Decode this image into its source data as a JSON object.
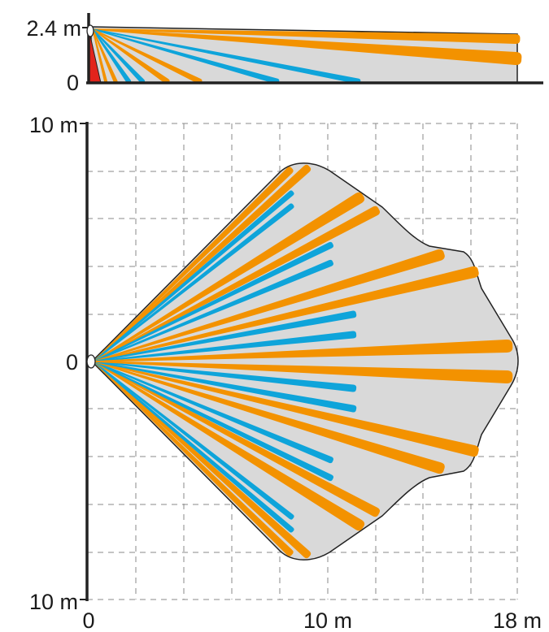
{
  "colors": {
    "orange": "#f39200",
    "blue": "#0ea4da",
    "coverage": "#d9d9d9",
    "outline": "#222222",
    "axis": "#222222",
    "grid": "#8a8a8a",
    "floor_zone": "#e2241c",
    "background": "#ffffff"
  },
  "side_view": {
    "height_max_label": "2.4 m",
    "height_zero_label": "0"
  },
  "top_view": {
    "y_top_label": "10 m",
    "y_zero_label": "0",
    "y_bottom_label": "10 m",
    "x_zero_label": "0",
    "x_mid_label": "10 m",
    "x_max_label": "18 m"
  },
  "icons": {
    "sensor": "pir-sensor-icon"
  }
}
